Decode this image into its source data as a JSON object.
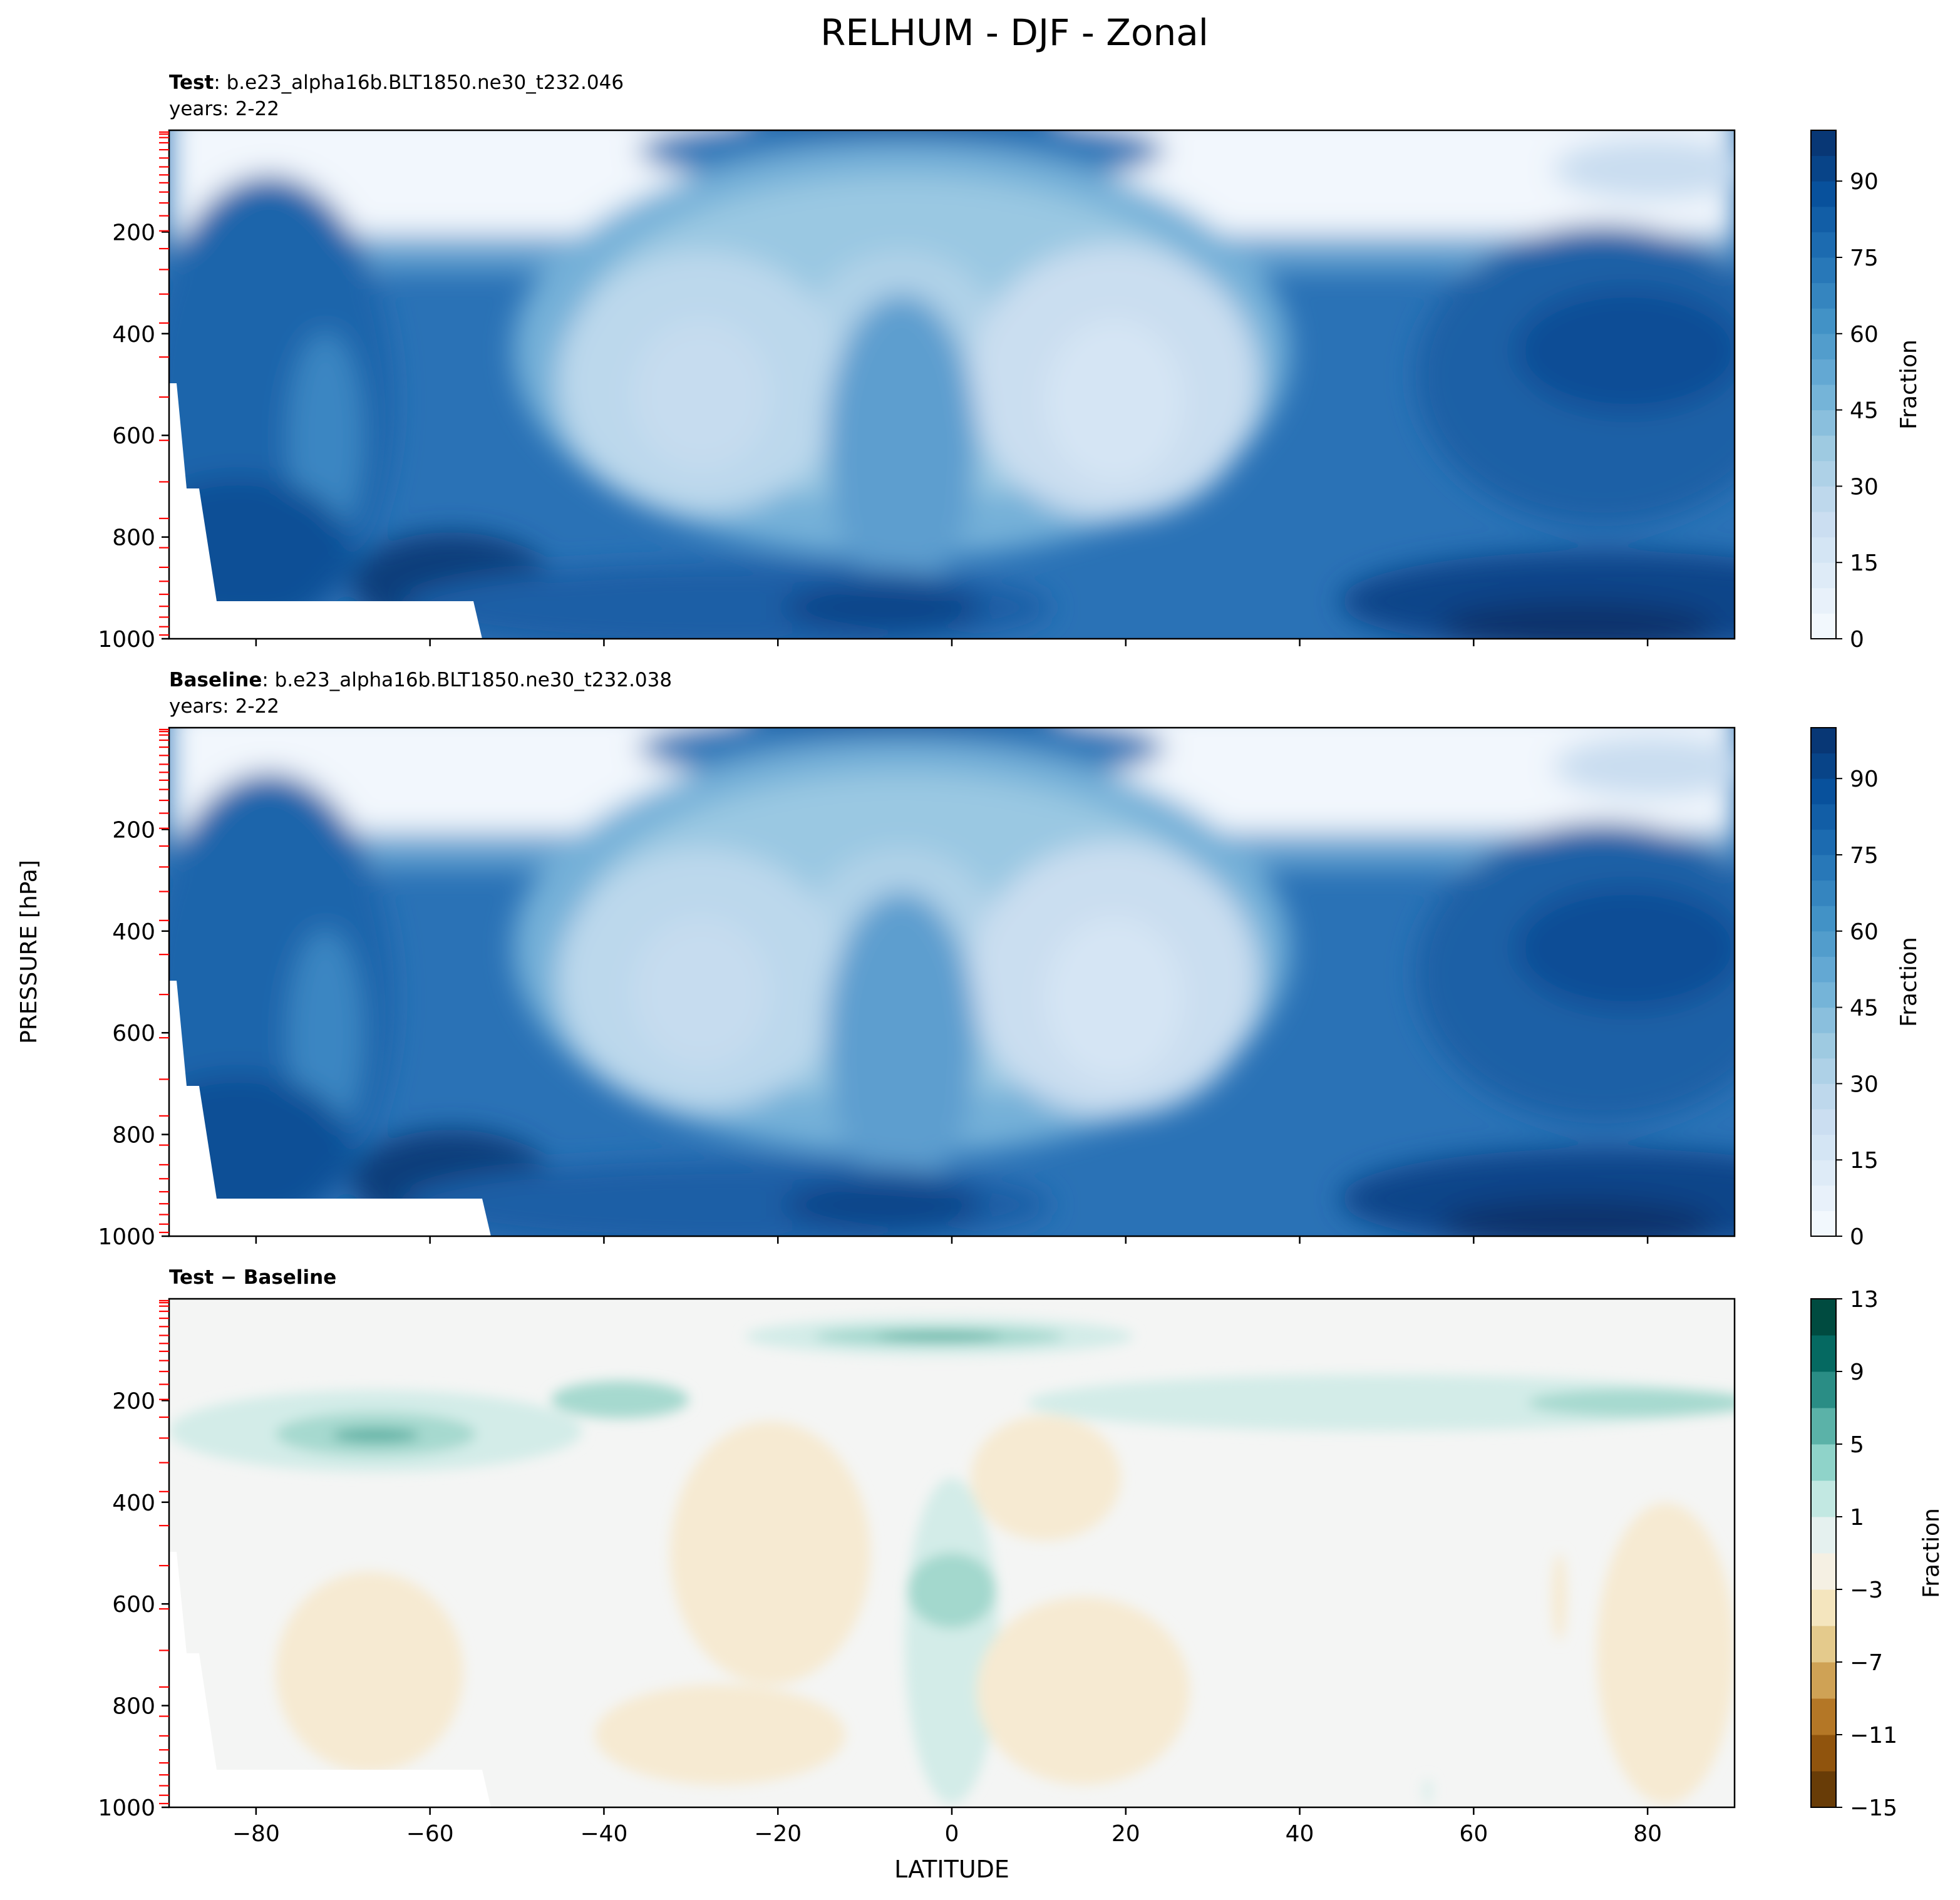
{
  "figure": {
    "title": "RELHUM - DJF - Zonal",
    "ylabel": "PRESSURE [hPa]",
    "xlabel": "LATITUDE"
  },
  "chart_data": [
    {
      "type": "heatmap",
      "title_bold": "Test",
      "title_rest": ": b.e23_alpha16b.BLT1850.ne30_t232.046",
      "subtitle": "years: 2-22",
      "xlim": [
        -90,
        90
      ],
      "ylim": [
        1000,
        0
      ],
      "yticks": [
        "200",
        "400",
        "600",
        "800",
        "1000"
      ],
      "colorbar": {
        "label": "Fraction",
        "ticks": [
          "0",
          "15",
          "30",
          "45",
          "60",
          "75",
          "90"
        ],
        "levels": [
          0,
          5,
          10,
          15,
          20,
          25,
          30,
          35,
          40,
          45,
          50,
          55,
          60,
          65,
          70,
          75,
          80,
          85,
          90,
          95,
          100
        ],
        "colormap": "Blues",
        "colors": [
          "#f7fbff",
          "#08306b"
        ]
      }
    },
    {
      "type": "heatmap",
      "title_bold": "Baseline",
      "title_rest": ": b.e23_alpha16b.BLT1850.ne30_t232.038",
      "subtitle": "years: 2-22",
      "xlim": [
        -90,
        90
      ],
      "ylim": [
        1000,
        0
      ],
      "yticks": [
        "200",
        "400",
        "600",
        "800",
        "1000"
      ],
      "colorbar": {
        "label": "Fraction",
        "ticks": [
          "0",
          "15",
          "30",
          "45",
          "60",
          "75",
          "90"
        ],
        "levels": [
          0,
          5,
          10,
          15,
          20,
          25,
          30,
          35,
          40,
          45,
          50,
          55,
          60,
          65,
          70,
          75,
          80,
          85,
          90,
          95,
          100
        ],
        "colormap": "Blues",
        "colors": [
          "#f7fbff",
          "#08306b"
        ]
      }
    },
    {
      "type": "heatmap",
      "title_bold": "Test − Baseline",
      "xlim": [
        -90,
        90
      ],
      "ylim": [
        1000,
        0
      ],
      "yticks": [
        "200",
        "400",
        "600",
        "800",
        "1000"
      ],
      "xticks": [
        "−80",
        "−60",
        "−40",
        "−20",
        "0",
        "20",
        "40",
        "60",
        "80"
      ],
      "colorbar": {
        "label": "Fraction",
        "ticks": [
          "13",
          "9",
          "5",
          "1",
          "−3",
          "−7",
          "−11",
          "−15"
        ],
        "levels": [
          -15,
          -13,
          -11,
          -9,
          -7,
          -5,
          -3,
          -1,
          1,
          3,
          5,
          7,
          9,
          11,
          13
        ],
        "colormap": "BrBG",
        "colors": [
          "#543005",
          "#8c510a",
          "#bf812d",
          "#dfc27d",
          "#f6e8c3",
          "#f5f5f5",
          "#c7eae5",
          "#80cdc1",
          "#35978f",
          "#01665e",
          "#003c30"
        ]
      }
    }
  ]
}
